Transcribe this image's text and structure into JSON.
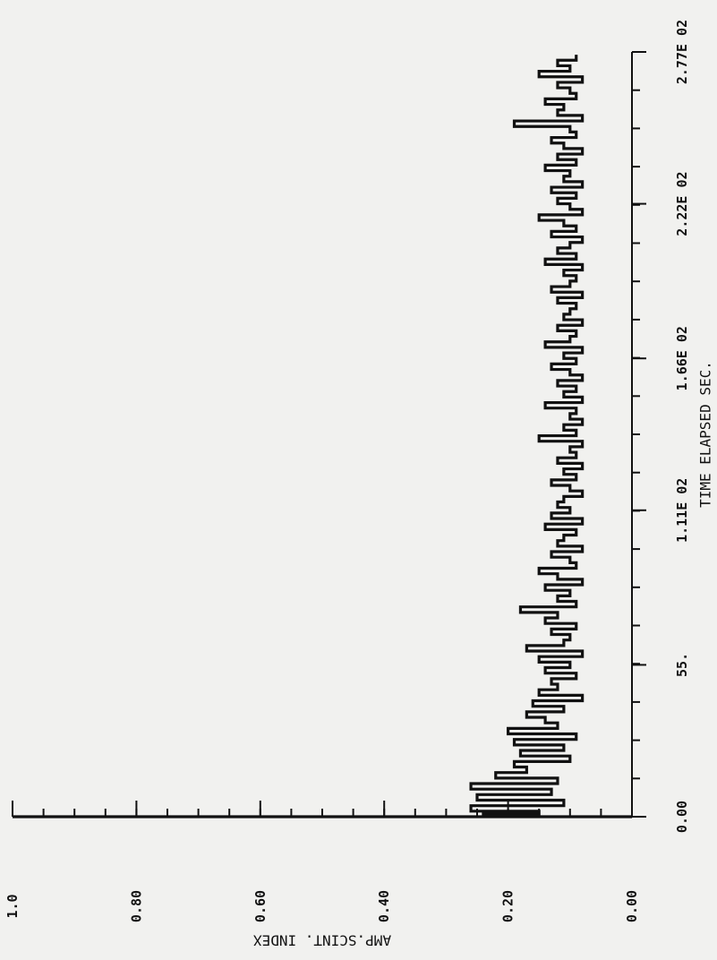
{
  "chart_data": {
    "type": "line",
    "xlabel": "TIME ELAPSED SEC.",
    "ylabel": "AMP.SCINT. INDEX",
    "xlim": [
      0,
      277
    ],
    "ylim": [
      0,
      1.0
    ],
    "x_tick_values": [
      0,
      55,
      111,
      166,
      222,
      277
    ],
    "x_tick_labels": [
      "0.00",
      "55.",
      "1.11E 02",
      "1.66E 02",
      "2.22E 02",
      "2.77E 02"
    ],
    "y_tick_values": [
      0,
      0.2,
      0.4,
      0.6,
      0.8,
      1.0
    ],
    "y_tick_labels": [
      "0.00",
      "0.20",
      "0.40",
      "0.60",
      "0.80",
      "1.0"
    ],
    "grid": false,
    "series": [
      {
        "color": "#111111",
        "x": [
          0,
          1,
          2,
          4,
          6,
          8,
          10,
          12,
          14,
          16,
          18,
          20,
          22,
          24,
          26,
          28,
          30,
          32,
          34,
          36,
          38,
          40,
          42,
          44,
          46,
          48,
          50,
          52,
          54,
          56,
          58,
          60,
          62,
          64,
          66,
          68,
          70,
          72,
          74,
          76,
          78,
          80,
          82,
          84,
          86,
          88,
          90,
          92,
          94,
          96,
          98,
          100,
          102,
          104,
          106,
          108,
          110,
          112,
          114,
          116,
          118,
          120,
          122,
          124,
          126,
          128,
          130,
          132,
          134,
          136,
          138,
          140,
          142,
          144,
          146,
          148,
          150,
          152,
          154,
          156,
          158,
          160,
          162,
          164,
          166,
          168,
          170,
          172,
          174,
          176,
          178,
          180,
          182,
          184,
          186,
          188,
          190,
          192,
          194,
          196,
          198,
          200,
          202,
          204,
          206,
          208,
          210,
          212,
          214,
          216,
          218,
          220,
          222,
          224,
          226,
          228,
          230,
          232,
          234,
          236,
          238,
          240,
          242,
          244,
          246,
          248,
          250,
          252,
          254,
          256,
          258,
          260,
          262,
          264,
          266,
          268,
          270,
          272,
          274,
          276
        ],
        "y": [
          0.265,
          0.24,
          0.15,
          0.26,
          0.11,
          0.25,
          0.13,
          0.26,
          0.12,
          0.22,
          0.17,
          0.19,
          0.1,
          0.18,
          0.11,
          0.19,
          0.09,
          0.2,
          0.12,
          0.14,
          0.17,
          0.11,
          0.16,
          0.08,
          0.15,
          0.12,
          0.13,
          0.09,
          0.14,
          0.1,
          0.15,
          0.08,
          0.17,
          0.11,
          0.1,
          0.13,
          0.09,
          0.14,
          0.12,
          0.18,
          0.09,
          0.12,
          0.1,
          0.14,
          0.08,
          0.12,
          0.15,
          0.09,
          0.1,
          0.13,
          0.08,
          0.12,
          0.11,
          0.09,
          0.14,
          0.08,
          0.13,
          0.1,
          0.12,
          0.11,
          0.08,
          0.1,
          0.13,
          0.09,
          0.11,
          0.08,
          0.12,
          0.09,
          0.1,
          0.08,
          0.15,
          0.09,
          0.11,
          0.08,
          0.1,
          0.09,
          0.14,
          0.08,
          0.11,
          0.09,
          0.12,
          0.08,
          0.1,
          0.13,
          0.09,
          0.11,
          0.08,
          0.14,
          0.1,
          0.09,
          0.12,
          0.08,
          0.11,
          0.1,
          0.09,
          0.12,
          0.08,
          0.13,
          0.1,
          0.09,
          0.11,
          0.08,
          0.14,
          0.09,
          0.12,
          0.1,
          0.08,
          0.13,
          0.09,
          0.11,
          0.15,
          0.08,
          0.1,
          0.12,
          0.09,
          0.13,
          0.08,
          0.11,
          0.1,
          0.14,
          0.09,
          0.12,
          0.08,
          0.11,
          0.13,
          0.09,
          0.1,
          0.19,
          0.08,
          0.12,
          0.11,
          0.14,
          0.09,
          0.1,
          0.12,
          0.08,
          0.15,
          0.1,
          0.12,
          0.09
        ]
      }
    ]
  }
}
